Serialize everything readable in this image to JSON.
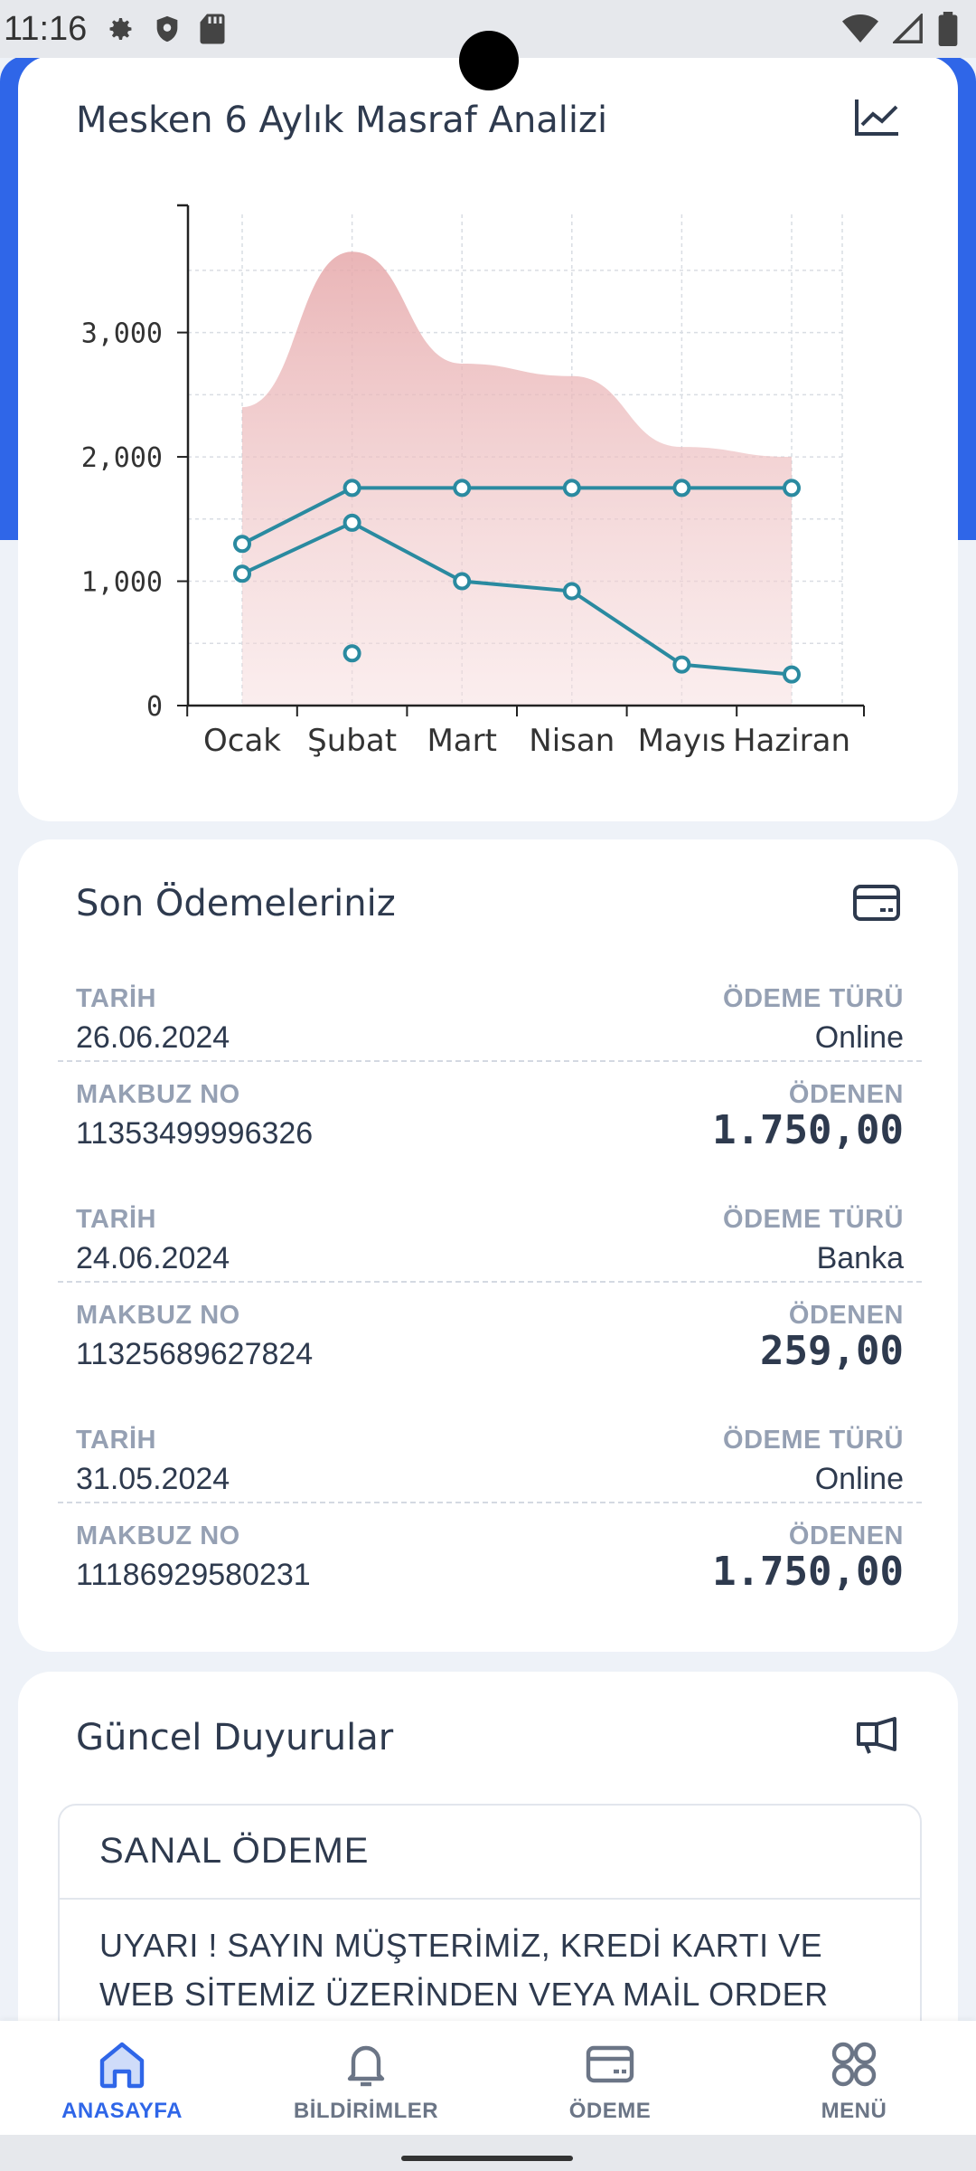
{
  "status_bar": {
    "time": "11:16"
  },
  "colors": {
    "accent": "#2f66e8",
    "line": "#2a8aa0",
    "area": "#e8aeb0"
  },
  "chart_card": {
    "title": "Mesken 6 Aylık Masraf Analizi",
    "icon": "line-chart-icon"
  },
  "chart_data": {
    "type": "line",
    "title": "",
    "xlabel": "",
    "ylabel": "",
    "categories": [
      "Ocak",
      "Şubat",
      "Mart",
      "Nisan",
      "Mayıs",
      "Haziran"
    ],
    "y_ticks": [
      "0",
      "1,000",
      "2,000",
      "3,000"
    ],
    "ylim": [
      0,
      3950
    ],
    "grid": true,
    "series": [
      {
        "type": "area",
        "values": [
          2400,
          3650,
          2750,
          2650,
          2080,
          2000
        ]
      },
      {
        "type": "line",
        "values": [
          1300,
          1750,
          1750,
          1750,
          1750,
          1750
        ]
      },
      {
        "type": "line",
        "values": [
          1060,
          1470,
          1000,
          920,
          330,
          250
        ]
      },
      {
        "type": "scatter",
        "values": [
          null,
          420,
          null,
          null,
          null,
          null
        ]
      }
    ]
  },
  "payments_card": {
    "title": "Son Ödemeleriniz",
    "icon": "credit-card-icon",
    "labels": {
      "date": "TARİH",
      "type": "ÖDEME TÜRÜ",
      "receipt": "MAKBUZ NO",
      "paid": "ÖDENEN"
    },
    "items": [
      {
        "date": "26.06.2024",
        "type": "Online",
        "receipt": "11353499996326",
        "amount": "1.750,00"
      },
      {
        "date": "24.06.2024",
        "type": "Banka",
        "receipt": "11325689627824",
        "amount": "259,00"
      },
      {
        "date": "31.05.2024",
        "type": "Online",
        "receipt": "11186929580231",
        "amount": "1.750,00"
      }
    ]
  },
  "news_card": {
    "title": "Güncel Duyurular",
    "icon": "megaphone-icon",
    "item_title": "SANAL ÖDEME",
    "item_text_line1": "UYARI ! SAYIN MÜŞTERİMİZ, KREDİ KARTI VE",
    "item_text_line2": "WEB SİTEMİZ ÜZERİNDEN VEYA MAİL ORDER"
  },
  "bottom_nav": [
    {
      "label": "ANASAYFA",
      "icon": "home-icon",
      "active": true
    },
    {
      "label": "BİLDİRİMLER",
      "icon": "bell-icon",
      "active": false
    },
    {
      "label": "ÖDEME",
      "icon": "credit-card-icon",
      "active": false
    },
    {
      "label": "MENÜ",
      "icon": "grid-menu-icon",
      "active": false
    }
  ]
}
